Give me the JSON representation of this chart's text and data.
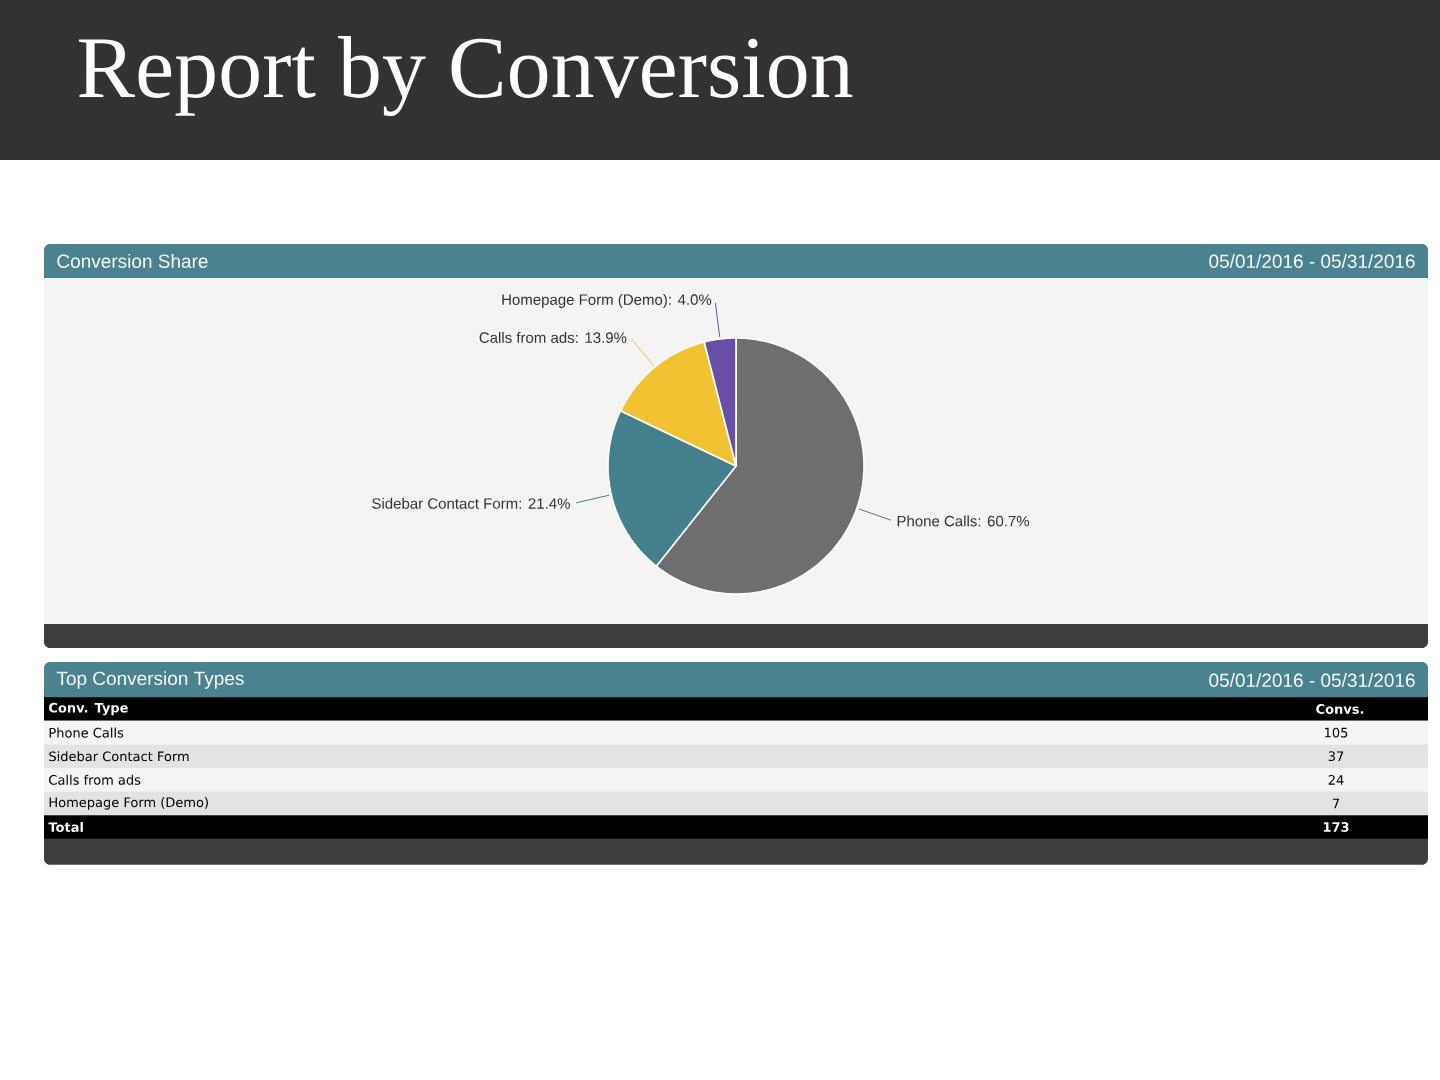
{
  "chart_data": {
    "type": "pie",
    "title": "Report by Conversion",
    "subtitle": "Conversion Share",
    "categories": [
      "Phone Calls",
      "Sidebar Contact Form",
      "Calls from ads",
      "Homepage Form (Demo)"
    ],
    "values": [
      60.7,
      21.4,
      13.9,
      4.0
    ],
    "colors": [
      "#6e6e6e",
      "#43808c",
      "#f1c232",
      "#684ea6"
    ],
    "value_labels": [
      ": 60.7%",
      ": 21.4%",
      ": 13.9%",
      ": 4.0%"
    ],
    "annotations": [
      "05/01/2016 - 05/31/2016",
      "Top Conversion Types",
      "05/01/2016 - 05/31/2016",
      "Conv. Type",
      "Convs.",
      "105",
      "37",
      "24",
      "7",
      "Total",
      "173"
    ]
  }
}
